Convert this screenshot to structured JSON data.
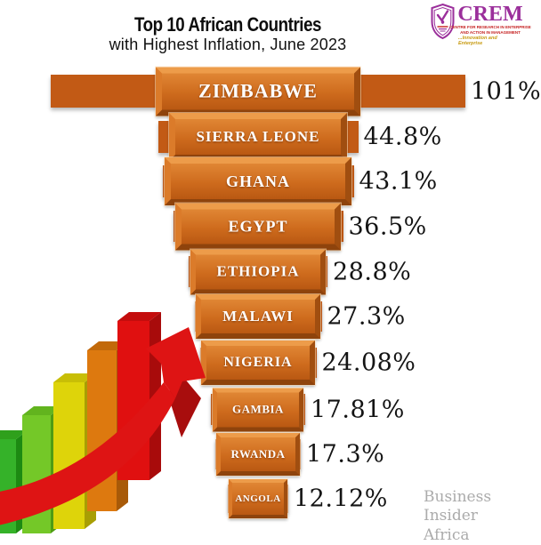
{
  "header": {
    "title": "Top 10 African Countries",
    "subtitle": "with Highest Inflation, June 2023"
  },
  "logo": {
    "name": "CREM",
    "line1": "CENTRE FOR RESEARCH IN ENTERPRISE",
    "line2": "AND ACTION IN MANAGEMENT",
    "tagline": "...Innovation and Enterprise",
    "purple": "#9B2F9B",
    "red": "#C41E1E",
    "gold": "#C79A10"
  },
  "watermark": {
    "line1": "Business Insider",
    "line2": "Africa"
  },
  "chart_data": {
    "type": "bar",
    "orientation": "horizontal",
    "title": "Top 10 African Countries with Highest Inflation, June 2023",
    "unit": "%",
    "categories": [
      "ZIMBABWE",
      "SIERRA LEONE",
      "GHANA",
      "EGYPT",
      "ETHIOPIA",
      "MALAWI",
      "NIGERIA",
      "GAMBIA",
      "RWANDA",
      "ANGOLA"
    ],
    "values": [
      101,
      44.8,
      43.1,
      36.5,
      28.8,
      27.3,
      24.08,
      17.81,
      17.3,
      12.12
    ],
    "value_labels": [
      "101%",
      "44.8%",
      "43.1%",
      "36.5%",
      "28.8%",
      "27.3%",
      "24.08%",
      "17.81%",
      "17.3%",
      "12.12%"
    ],
    "bar_color": "#C25A15",
    "value_color": "#141414",
    "xlim": [
      0,
      110
    ],
    "grid": false,
    "legend": false
  },
  "decor": {
    "arrow_color": "#DE1414",
    "arrow_shadow_color": "#A80D0D",
    "bar_icon_colors": [
      "#35B229",
      "#74C828",
      "#DED40A",
      "#DD790F",
      "#E01010"
    ]
  }
}
